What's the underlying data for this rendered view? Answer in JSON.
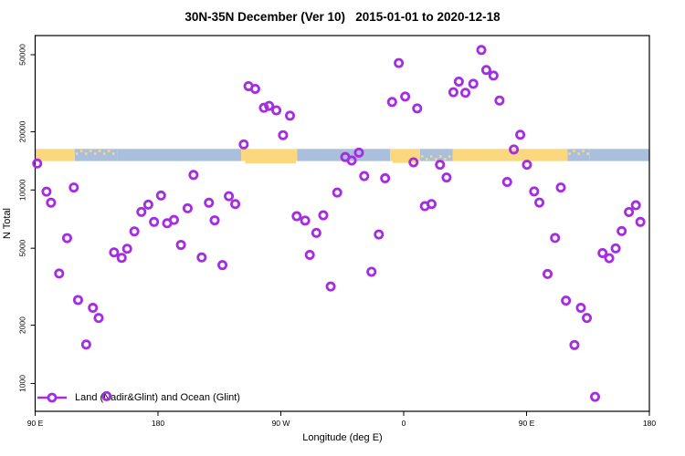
{
  "chart_data": {
    "type": "scatter",
    "title": "30N-35N December (Ver 10)   2015-01-01 to 2020-12-18",
    "xlabel": "Longitude (deg E)",
    "ylabel": "N Total",
    "x_axis": {
      "min": 90,
      "max": 540,
      "ticks": [
        90,
        180,
        270,
        360,
        450,
        540
      ],
      "tick_labels": [
        "90 E",
        "180",
        "90 W",
        "0",
        "90 E",
        "180"
      ]
    },
    "y_axis": {
      "scale": "log10",
      "min": 718,
      "max": 62800,
      "ticks": [
        1000,
        2000,
        5000,
        10000,
        20000,
        50000
      ],
      "tick_labels": [
        "1000",
        "2000",
        "5000",
        "10000",
        "20000",
        "50000"
      ]
    },
    "legend": {
      "label": "Land (Nadir&Glint) and Ocean (Glint)",
      "position": "bottom-left"
    },
    "marker": {
      "type": "open-circle",
      "color": "#A62CE2",
      "radius": 4.1,
      "stroke_width": 2.8
    },
    "map_band": {
      "description": "land-ocean strip along 30N-35N",
      "value_top": 16300,
      "value_bottom": 14100,
      "land_color": "#FBD87E",
      "ocean_color": "#A9BFDB",
      "segments": [
        {
          "from": 90,
          "to": 119,
          "type": "land"
        },
        {
          "from": 119,
          "to": 150,
          "type": "mixed",
          "bias": "top"
        },
        {
          "from": 150,
          "to": 241,
          "type": "ocean"
        },
        {
          "from": 241,
          "to": 282,
          "type": "land"
        },
        {
          "from": 282,
          "to": 350,
          "type": "ocean"
        },
        {
          "from": 350,
          "to": 372,
          "type": "land"
        },
        {
          "from": 372,
          "to": 396,
          "type": "mixed",
          "bias": "bottom"
        },
        {
          "from": 396,
          "to": 480,
          "type": "land"
        },
        {
          "from": 480,
          "to": 496,
          "type": "mixed",
          "bias": "top"
        },
        {
          "from": 496,
          "to": 540,
          "type": "ocean"
        }
      ],
      "bulges": [
        {
          "from": 244,
          "to": 281,
          "extra": 2.5
        },
        {
          "from": 352,
          "to": 371,
          "extra": 2
        }
      ]
    },
    "points": [
      [
        91.5,
        13700
      ],
      [
        98.3,
        9800
      ],
      [
        101.6,
        8600
      ],
      [
        107.6,
        3700
      ],
      [
        113.4,
        5640
      ],
      [
        118.3,
        10300
      ],
      [
        121.4,
        2700
      ],
      [
        127.4,
        1590
      ],
      [
        132.3,
        2460
      ],
      [
        136.5,
        2180
      ],
      [
        142.3,
        860
      ],
      [
        147.8,
        4760
      ],
      [
        153.4,
        4460
      ],
      [
        157.4,
        4970
      ],
      [
        162.7,
        6110
      ],
      [
        167.8,
        7700
      ],
      [
        172.9,
        8400
      ],
      [
        177.1,
        6840
      ],
      [
        182.2,
        9360
      ],
      [
        186.7,
        6730
      ],
      [
        191.7,
        7000
      ],
      [
        196.8,
        5200
      ],
      [
        201.7,
        8040
      ],
      [
        206,
        11960
      ],
      [
        212,
        4480
      ],
      [
        217.3,
        8590
      ],
      [
        221.5,
        6970
      ],
      [
        227.2,
        4090
      ],
      [
        231.9,
        9290
      ],
      [
        236.6,
        8460
      ],
      [
        242.8,
        17200
      ],
      [
        246.3,
        34400
      ],
      [
        251.2,
        33300
      ],
      [
        257.6,
        26600
      ],
      [
        261.4,
        27200
      ],
      [
        266.7,
        25800
      ],
      [
        271.6,
        19200
      ],
      [
        276.7,
        24200
      ],
      [
        281.6,
        7320
      ],
      [
        287.8,
        6950
      ],
      [
        291.2,
        4620
      ],
      [
        296,
        6000
      ],
      [
        301.1,
        7400
      ],
      [
        306.5,
        3170
      ],
      [
        311.3,
        9700
      ],
      [
        317.2,
        14800
      ],
      [
        321.9,
        14200
      ],
      [
        327.2,
        15600
      ],
      [
        331.1,
        11800
      ],
      [
        336.4,
        3780
      ],
      [
        341.8,
        5890
      ],
      [
        346.4,
        11500
      ],
      [
        351.5,
        28500
      ],
      [
        356.4,
        45300
      ],
      [
        361.1,
        30400
      ],
      [
        367.2,
        13900
      ],
      [
        369.9,
        26400
      ],
      [
        375.5,
        8250
      ],
      [
        380.4,
        8460
      ],
      [
        386.6,
        13500
      ],
      [
        391.4,
        11600
      ],
      [
        396.4,
        32000
      ],
      [
        400.4,
        36300
      ],
      [
        405.2,
        31800
      ],
      [
        411,
        35400
      ],
      [
        416.9,
        52900
      ],
      [
        420.5,
        41700
      ],
      [
        425.8,
        39000
      ],
      [
        430.2,
        29000
      ],
      [
        435.8,
        11000
      ],
      [
        440.7,
        16200
      ],
      [
        445.4,
        19300
      ],
      [
        450.3,
        13500
      ],
      [
        455.6,
        9830
      ],
      [
        459.4,
        8610
      ],
      [
        465.4,
        3680
      ],
      [
        470.9,
        5650
      ],
      [
        475.1,
        10300
      ],
      [
        478.9,
        2680
      ],
      [
        485.1,
        1580
      ],
      [
        489.8,
        2460
      ],
      [
        494.2,
        2180
      ],
      [
        500.2,
        853
      ],
      [
        505.7,
        4720
      ],
      [
        510.6,
        4440
      ],
      [
        515.3,
        4990
      ],
      [
        519.7,
        6130
      ],
      [
        525,
        7690
      ],
      [
        530.1,
        8340
      ],
      [
        533.4,
        6840
      ]
    ]
  }
}
